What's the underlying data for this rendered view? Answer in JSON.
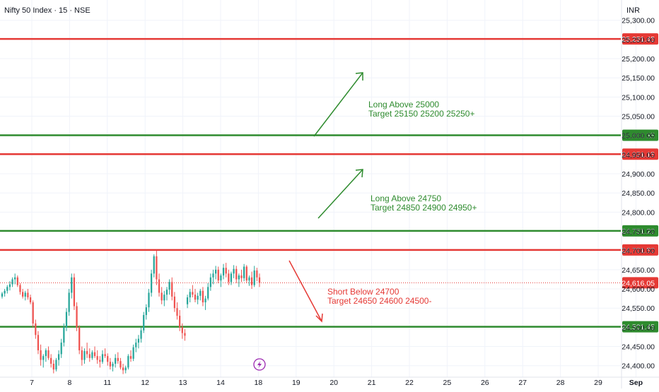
{
  "header": {
    "symbol_title": "Nifty 50 Index · 15 · NSE",
    "currency": "INR"
  },
  "chart_data": {
    "type": "candlestick",
    "ylim": [
      24370,
      25340
    ],
    "y_ticks": [
      {
        "value": 25300,
        "label": "25,300.00"
      },
      {
        "value": 25250,
        "label": "25,250.00"
      },
      {
        "value": 25200,
        "label": "25,200.00"
      },
      {
        "value": 25150,
        "label": "25,150.00"
      },
      {
        "value": 25100,
        "label": "25,100.00"
      },
      {
        "value": 25050,
        "label": "25,050.00"
      },
      {
        "value": 25000,
        "label": "25,000.00"
      },
      {
        "value": 24950,
        "label": "24,950.00"
      },
      {
        "value": 24900,
        "label": "24,900.00"
      },
      {
        "value": 24850,
        "label": "24,850.00"
      },
      {
        "value": 24800,
        "label": "24,800.00"
      },
      {
        "value": 24750,
        "label": "24,750.00"
      },
      {
        "value": 24700,
        "label": "24,700.00"
      },
      {
        "value": 24650,
        "label": "24,650.00"
      },
      {
        "value": 24600,
        "label": "24,600.00"
      },
      {
        "value": 24550,
        "label": "24,550.00"
      },
      {
        "value": 24500,
        "label": "24,500.00"
      },
      {
        "value": 24450,
        "label": "24,450.00"
      },
      {
        "value": 24400,
        "label": "24,400.00"
      }
    ],
    "x_ticks": [
      "7",
      "8",
      "11",
      "12",
      "13",
      "14",
      "18",
      "19",
      "20",
      "21",
      "22",
      "25",
      "26",
      "27",
      "28",
      "29",
      "Sep"
    ],
    "x_tick_bold": [
      "Sep"
    ],
    "horizontal_levels": [
      {
        "value": 25251.45,
        "label": "25,251.45",
        "color": "#e53935"
      },
      {
        "value": 25000.35,
        "label": "25,000.35",
        "color": "#2e8b2e"
      },
      {
        "value": 24951.15,
        "label": "24,951.15",
        "color": "#e53935"
      },
      {
        "value": 24751.2,
        "label": "24,751.20",
        "color": "#2e8b2e"
      },
      {
        "value": 24701.5,
        "label": "24,701.50",
        "color": "#e53935"
      },
      {
        "value": 24501.45,
        "label": "24,501.45",
        "color": "#2e8b2e"
      }
    ],
    "last_price": {
      "value": 24616.05,
      "label": "24,616.05",
      "color": "#e53935"
    },
    "annotations": [
      {
        "lines": [
          "Long Above 25000",
          "Target 25150 25200 25250+"
        ],
        "color": "#2e8b2e"
      },
      {
        "lines": [
          "Long Above 24750",
          "Target 24850 24900 24950+"
        ],
        "color": "#2e8b2e"
      },
      {
        "lines": [
          "Short Below 24700",
          "Target 24650 24600 24500-"
        ],
        "color": "#e53935"
      }
    ],
    "candles": [
      [
        24580,
        24592,
        24575,
        24588
      ],
      [
        24588,
        24600,
        24580,
        24595
      ],
      [
        24595,
        24610,
        24588,
        24605
      ],
      [
        24605,
        24620,
        24596,
        24612
      ],
      [
        24612,
        24630,
        24605,
        24625
      ],
      [
        24625,
        24640,
        24612,
        24630
      ],
      [
        24630,
        24635,
        24605,
        24610
      ],
      [
        24610,
        24615,
        24585,
        24592
      ],
      [
        24592,
        24600,
        24575,
        24580
      ],
      [
        24580,
        24595,
        24570,
        24590
      ],
      [
        24590,
        24600,
        24572,
        24578
      ],
      [
        24578,
        24585,
        24560,
        24565
      ],
      [
        24565,
        24570,
        24500,
        24510
      ],
      [
        24510,
        24520,
        24470,
        24480
      ],
      [
        24480,
        24490,
        24430,
        24440
      ],
      [
        24440,
        24455,
        24400,
        24415
      ],
      [
        24415,
        24430,
        24395,
        24425
      ],
      [
        24425,
        24445,
        24410,
        24440
      ],
      [
        24440,
        24450,
        24415,
        24420
      ],
      [
        24420,
        24430,
        24395,
        24405
      ],
      [
        24405,
        24415,
        24380,
        24390
      ],
      [
        24390,
        24420,
        24385,
        24415
      ],
      [
        24415,
        24440,
        24400,
        24430
      ],
      [
        24430,
        24470,
        24420,
        24460
      ],
      [
        24460,
        24510,
        24450,
        24500
      ],
      [
        24500,
        24550,
        24490,
        24540
      ],
      [
        24540,
        24600,
        24530,
        24590
      ],
      [
        24590,
        24640,
        24575,
        24630
      ],
      [
        24630,
        24640,
        24545,
        24555
      ],
      [
        24555,
        24565,
        24490,
        24500
      ],
      [
        24500,
        24505,
        24430,
        24440
      ],
      [
        24440,
        24450,
        24400,
        24415
      ],
      [
        24415,
        24445,
        24405,
        24438
      ],
      [
        24438,
        24460,
        24420,
        24430
      ],
      [
        24430,
        24445,
        24410,
        24420
      ],
      [
        24420,
        24440,
        24415,
        24435
      ],
      [
        24435,
        24450,
        24420,
        24425
      ],
      [
        24425,
        24440,
        24405,
        24415
      ],
      [
        24415,
        24425,
        24395,
        24410
      ],
      [
        24410,
        24440,
        24405,
        24430
      ],
      [
        24430,
        24445,
        24420,
        24425
      ],
      [
        24425,
        24432,
        24400,
        24410
      ],
      [
        24410,
        24420,
        24390,
        24398
      ],
      [
        24398,
        24410,
        24385,
        24405
      ],
      [
        24405,
        24430,
        24395,
        24420
      ],
      [
        24420,
        24435,
        24405,
        24412
      ],
      [
        24412,
        24420,
        24390,
        24395
      ],
      [
        24395,
        24405,
        24378,
        24388
      ],
      [
        24388,
        24400,
        24380,
        24395
      ],
      [
        24395,
        24430,
        24390,
        24425
      ],
      [
        24425,
        24440,
        24410,
        24418
      ],
      [
        24418,
        24455,
        24412,
        24448
      ],
      [
        24448,
        24470,
        24435,
        24460
      ],
      [
        24460,
        24480,
        24445,
        24470
      ],
      [
        24470,
        24500,
        24460,
        24492
      ],
      [
        24492,
        24540,
        24485,
        24532
      ],
      [
        24532,
        24560,
        24520,
        24552
      ],
      [
        24552,
        24600,
        24540,
        24590
      ],
      [
        24590,
        24650,
        24580,
        24640
      ],
      [
        24640,
        24690,
        24630,
        24685
      ],
      [
        24685,
        24700,
        24610,
        24625
      ],
      [
        24625,
        24640,
        24580,
        24590
      ],
      [
        24590,
        24605,
        24560,
        24570
      ],
      [
        24570,
        24595,
        24555,
        24585
      ],
      [
        24585,
        24605,
        24570,
        24598
      ],
      [
        24598,
        24625,
        24585,
        24618
      ],
      [
        24618,
        24630,
        24570,
        24580
      ],
      [
        24580,
        24592,
        24540,
        24550
      ],
      [
        24550,
        24565,
        24520,
        24530
      ],
      [
        24530,
        24545,
        24490,
        24500
      ],
      [
        24500,
        24510,
        24470,
        24485
      ],
      [
        24485,
        24495,
        24465,
        24478
      ],
      [
        24560,
        24585,
        24550,
        24578
      ],
      [
        24578,
        24600,
        24565,
        24592
      ],
      [
        24592,
        24610,
        24578,
        24585
      ],
      [
        24585,
        24600,
        24565,
        24572
      ],
      [
        24572,
        24590,
        24560,
        24582
      ],
      [
        24582,
        24600,
        24570,
        24595
      ],
      [
        24595,
        24605,
        24555,
        24565
      ],
      [
        24565,
        24582,
        24545,
        24575
      ],
      [
        24575,
        24615,
        24570,
        24605
      ],
      [
        24605,
        24640,
        24595,
        24630
      ],
      [
        24630,
        24650,
        24612,
        24640
      ],
      [
        24640,
        24660,
        24625,
        24650
      ],
      [
        24650,
        24658,
        24615,
        24622
      ],
      [
        24622,
        24640,
        24605,
        24635
      ],
      [
        24635,
        24665,
        24625,
        24655
      ],
      [
        24655,
        24668,
        24630,
        24640
      ],
      [
        24640,
        24650,
        24610,
        24618
      ],
      [
        24618,
        24645,
        24610,
        24640
      ],
      [
        24640,
        24662,
        24628,
        24652
      ],
      [
        24652,
        24660,
        24615,
        24625
      ],
      [
        24625,
        24640,
        24605,
        24635
      ],
      [
        24635,
        24650,
        24618,
        24628
      ],
      [
        24628,
        24665,
        24620,
        24658
      ],
      [
        24658,
        24662,
        24615,
        24622
      ],
      [
        24622,
        24635,
        24608,
        24630
      ],
      [
        24630,
        24645,
        24600,
        24610
      ],
      [
        24610,
        24660,
        24605,
        24648
      ],
      [
        24648,
        24655,
        24620,
        24630
      ],
      [
        24630,
        24640,
        24605,
        24616
      ]
    ]
  }
}
